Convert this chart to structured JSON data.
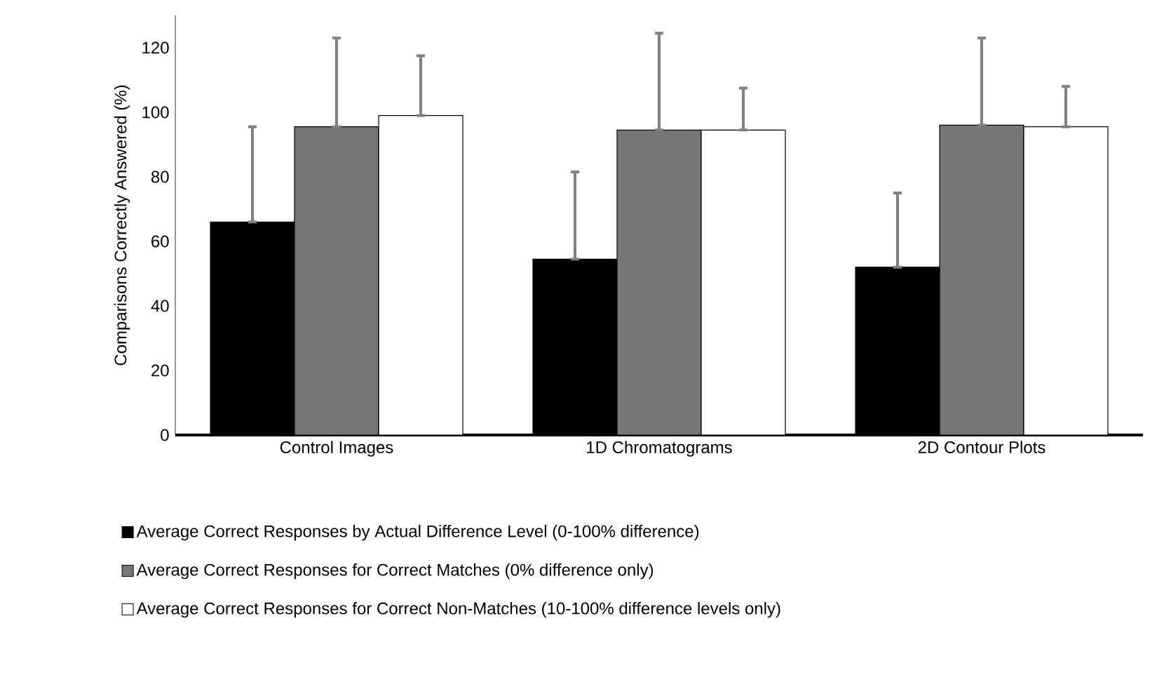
{
  "chart_data": {
    "type": "bar",
    "ylabel": "Comparisons Correctly Answered (%)",
    "categories": [
      "Control Images",
      "1D Chromatograms",
      "2D Contour Plots"
    ],
    "series": [
      {
        "name": "Average Correct Responses by Actual Difference Level (0-100% difference)",
        "color": "#000000",
        "values": [
          66,
          54.5,
          52
        ],
        "errors": [
          [
            66,
            95.5
          ],
          [
            54.5,
            81.5
          ],
          [
            52,
            75
          ]
        ]
      },
      {
        "name": "Average Correct Responses for Correct Matches (0% difference only)",
        "color": "#767676",
        "values": [
          95.5,
          94.5,
          96
        ],
        "errors": [
          [
            95.5,
            123
          ],
          [
            94.5,
            124.5
          ],
          [
            96,
            123
          ]
        ]
      },
      {
        "name": "Average Correct Responses for Correct Non-Matches (10-100% difference levels only)",
        "color": "#ffffff",
        "values": [
          99,
          94.5,
          95.5
        ],
        "errors": [
          [
            99,
            117.5
          ],
          [
            94.5,
            107.5
          ],
          [
            95.5,
            108
          ]
        ]
      }
    ],
    "ylim": [
      0,
      130
    ],
    "yticks": [
      0,
      20,
      40,
      60,
      80,
      100,
      120
    ],
    "grid": false,
    "legend": "bottom"
  }
}
